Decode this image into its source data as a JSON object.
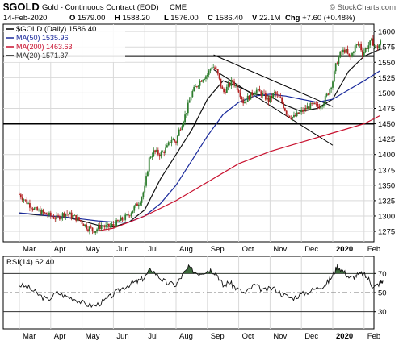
{
  "header": {
    "symbol": "$GOLD",
    "description": "Gold - Continuous Contract (EOD)",
    "exchange": "CME",
    "watermark": "© StockCharts.com",
    "date": "14-Feb-2020",
    "quote": [
      {
        "label": "O",
        "value": "1579.00"
      },
      {
        "label": "H",
        "value": "1588.20"
      },
      {
        "label": "L",
        "value": "1576.00"
      },
      {
        "label": "C",
        "value": "1586.40"
      },
      {
        "label": "V",
        "value": "22.1M"
      },
      {
        "label": "Chg",
        "value": "+7.60 (+0.48%)"
      }
    ]
  },
  "legend": {
    "price": "$GOLD (Daily) 1586.40",
    "ma50": "MA(50) 1535.96",
    "ma200": "MA(200) 1463.63",
    "ma20": "MA(20) 1571.37"
  },
  "rsi_legend": "RSI(14) 62.40",
  "colors": {
    "up": "#2e7d2e",
    "down": "#b22222",
    "ma20": "#111111",
    "ma50": "#1a2a9c",
    "ma200": "#c8102e",
    "rsi_line": "#111111",
    "rsi_fill": "#3d6b3d",
    "grid": "#d9d9d9"
  },
  "chart_data": [
    {
      "type": "candlestick",
      "x_ticks": [
        "Mar",
        "Apr",
        "May",
        "Jun",
        "Jul",
        "Aug",
        "Sep",
        "Oct",
        "Nov",
        "Dec",
        "2020",
        "Feb"
      ],
      "y_ticks": [
        1275,
        1300,
        1325,
        1350,
        1375,
        1400,
        1425,
        1450,
        1475,
        1500,
        1525,
        1550,
        1575,
        1600
      ],
      "ylim": [
        1258,
        1612
      ],
      "grid": true,
      "series": [
        {
          "name": "$GOLD (Daily)",
          "points": [
            [
              0,
              1335
            ],
            [
              0.25,
              1322
            ],
            [
              0.5,
              1310
            ],
            [
              0.75,
              1305
            ],
            [
              1,
              1300
            ],
            [
              1.2,
              1296
            ],
            [
              1.45,
              1305
            ],
            [
              1.7,
              1300
            ],
            [
              1.95,
              1292
            ],
            [
              2.15,
              1282
            ],
            [
              2.4,
              1276
            ],
            [
              2.6,
              1284
            ],
            [
              2.8,
              1282
            ],
            [
              3,
              1285
            ],
            [
              3.2,
              1292
            ],
            [
              3.45,
              1300
            ],
            [
              3.65,
              1312
            ],
            [
              3.85,
              1325
            ],
            [
              4,
              1345
            ],
            [
              4.15,
              1395
            ],
            [
              4.3,
              1405
            ],
            [
              4.5,
              1400
            ],
            [
              4.7,
              1410
            ],
            [
              4.85,
              1425
            ],
            [
              5,
              1420
            ],
            [
              5.1,
              1440
            ],
            [
              5.3,
              1465
            ],
            [
              5.5,
              1500
            ],
            [
              5.7,
              1515
            ],
            [
              5.85,
              1525
            ],
            [
              6,
              1530
            ],
            [
              6.15,
              1545
            ],
            [
              6.3,
              1535
            ],
            [
              6.5,
              1500
            ],
            [
              6.65,
              1510
            ],
            [
              6.8,
              1520
            ],
            [
              7,
              1505
            ],
            [
              7.15,
              1485
            ],
            [
              7.35,
              1495
            ],
            [
              7.55,
              1505
            ],
            [
              7.75,
              1498
            ],
            [
              7.95,
              1488
            ],
            [
              8.15,
              1500
            ],
            [
              8.35,
              1488
            ],
            [
              8.55,
              1465
            ],
            [
              8.75,
              1460
            ],
            [
              8.95,
              1468
            ],
            [
              9.15,
              1475
            ],
            [
              9.35,
              1480
            ],
            [
              9.55,
              1478
            ],
            [
              9.7,
              1485
            ],
            [
              9.85,
              1500
            ],
            [
              10,
              1520
            ],
            [
              10.1,
              1545
            ],
            [
              10.25,
              1565
            ],
            [
              10.4,
              1570
            ],
            [
              10.55,
              1555
            ],
            [
              10.7,
              1575
            ],
            [
              10.85,
              1580
            ],
            [
              10.95,
              1565
            ],
            [
              11.1,
              1575
            ],
            [
              11.25,
              1585
            ],
            [
              11.4,
              1572
            ],
            [
              11.55,
              1585
            ]
          ]
        },
        {
          "name": "MA(20)",
          "points": [
            [
              0,
              1305
            ],
            [
              0.5,
              1302
            ],
            [
              1,
              1300
            ],
            [
              1.5,
              1298
            ],
            [
              2,
              1292
            ],
            [
              2.5,
              1285
            ],
            [
              3,
              1282
            ],
            [
              3.5,
              1290
            ],
            [
              4,
              1310
            ],
            [
              4.5,
              1360
            ],
            [
              5,
              1400
            ],
            [
              5.5,
              1440
            ],
            [
              6,
              1490
            ],
            [
              6.5,
              1520
            ],
            [
              7,
              1510
            ],
            [
              7.5,
              1498
            ],
            [
              8,
              1495
            ],
            [
              8.5,
              1480
            ],
            [
              9,
              1470
            ],
            [
              9.5,
              1475
            ],
            [
              10,
              1490
            ],
            [
              10.5,
              1535
            ],
            [
              11,
              1560
            ],
            [
              11.5,
              1571
            ]
          ]
        },
        {
          "name": "MA(50)",
          "points": [
            [
              0,
              1305
            ],
            [
              0.5,
              1303
            ],
            [
              1,
              1300
            ],
            [
              1.5,
              1298
            ],
            [
              2,
              1295
            ],
            [
              2.5,
              1292
            ],
            [
              3,
              1290
            ],
            [
              3.5,
              1290
            ],
            [
              4,
              1300
            ],
            [
              4.5,
              1320
            ],
            [
              5,
              1350
            ],
            [
              5.5,
              1390
            ],
            [
              6,
              1430
            ],
            [
              6.5,
              1465
            ],
            [
              7,
              1485
            ],
            [
              7.5,
              1495
            ],
            [
              8,
              1498
            ],
            [
              8.5,
              1495
            ],
            [
              9,
              1490
            ],
            [
              9.5,
              1485
            ],
            [
              10,
              1490
            ],
            [
              10.5,
              1505
            ],
            [
              11,
              1520
            ],
            [
              11.5,
              1536
            ]
          ]
        },
        {
          "name": "MA(200)",
          "points": [
            [
              2.4,
              1275
            ],
            [
              3,
              1280
            ],
            [
              4,
              1300
            ],
            [
              5,
              1325
            ],
            [
              6,
              1355
            ],
            [
              7,
              1385
            ],
            [
              8,
              1405
            ],
            [
              9,
              1420
            ],
            [
              10,
              1435
            ],
            [
              11,
              1450
            ],
            [
              11.5,
              1463
            ]
          ]
        }
      ],
      "lines": [
        {
          "name": "horizontal-support-upper",
          "value": 1560
        },
        {
          "name": "horizontal-support-lower",
          "value": 1450
        },
        {
          "name": "channel-upper",
          "points": [
            [
              6.2,
              1562
            ],
            [
              10,
              1478
            ]
          ]
        },
        {
          "name": "channel-lower",
          "points": [
            [
              6.2,
              1538
            ],
            [
              10,
              1415
            ]
          ]
        }
      ]
    },
    {
      "type": "line",
      "title": "RSI(14) 62.40",
      "y_ticks": [
        30,
        50,
        70
      ],
      "ylim": [
        12,
        88
      ],
      "series": [
        {
          "name": "RSI(14)",
          "points": [
            [
              0,
              58
            ],
            [
              0.3,
              55
            ],
            [
              0.6,
              48
            ],
            [
              0.9,
              42
            ],
            [
              1.2,
              50
            ],
            [
              1.5,
              46
            ],
            [
              1.8,
              43
            ],
            [
              2.1,
              38
            ],
            [
              2.4,
              36
            ],
            [
              2.7,
              41
            ],
            [
              3,
              48
            ],
            [
              3.3,
              55
            ],
            [
              3.6,
              60
            ],
            [
              3.8,
              62
            ],
            [
              4,
              66
            ],
            [
              4.2,
              75
            ],
            [
              4.5,
              65
            ],
            [
              4.7,
              60
            ],
            [
              5,
              58
            ],
            [
              5.2,
              68
            ],
            [
              5.4,
              76
            ],
            [
              5.7,
              70
            ],
            [
              5.9,
              72
            ],
            [
              6.1,
              74
            ],
            [
              6.3,
              70
            ],
            [
              6.5,
              57
            ],
            [
              6.7,
              61
            ],
            [
              6.9,
              55
            ],
            [
              7.2,
              49
            ],
            [
              7.5,
              58
            ],
            [
              7.8,
              52
            ],
            [
              8.1,
              55
            ],
            [
              8.4,
              48
            ],
            [
              8.7,
              44
            ],
            [
              9,
              48
            ],
            [
              9.3,
              52
            ],
            [
              9.6,
              56
            ],
            [
              9.8,
              59
            ],
            [
              10,
              68
            ],
            [
              10.15,
              78
            ],
            [
              10.35,
              72
            ],
            [
              10.55,
              65
            ],
            [
              10.75,
              68
            ],
            [
              10.95,
              70
            ],
            [
              11.15,
              64
            ],
            [
              11.3,
              55
            ],
            [
              11.5,
              60
            ],
            [
              11.6,
              62.4
            ]
          ]
        }
      ]
    }
  ]
}
